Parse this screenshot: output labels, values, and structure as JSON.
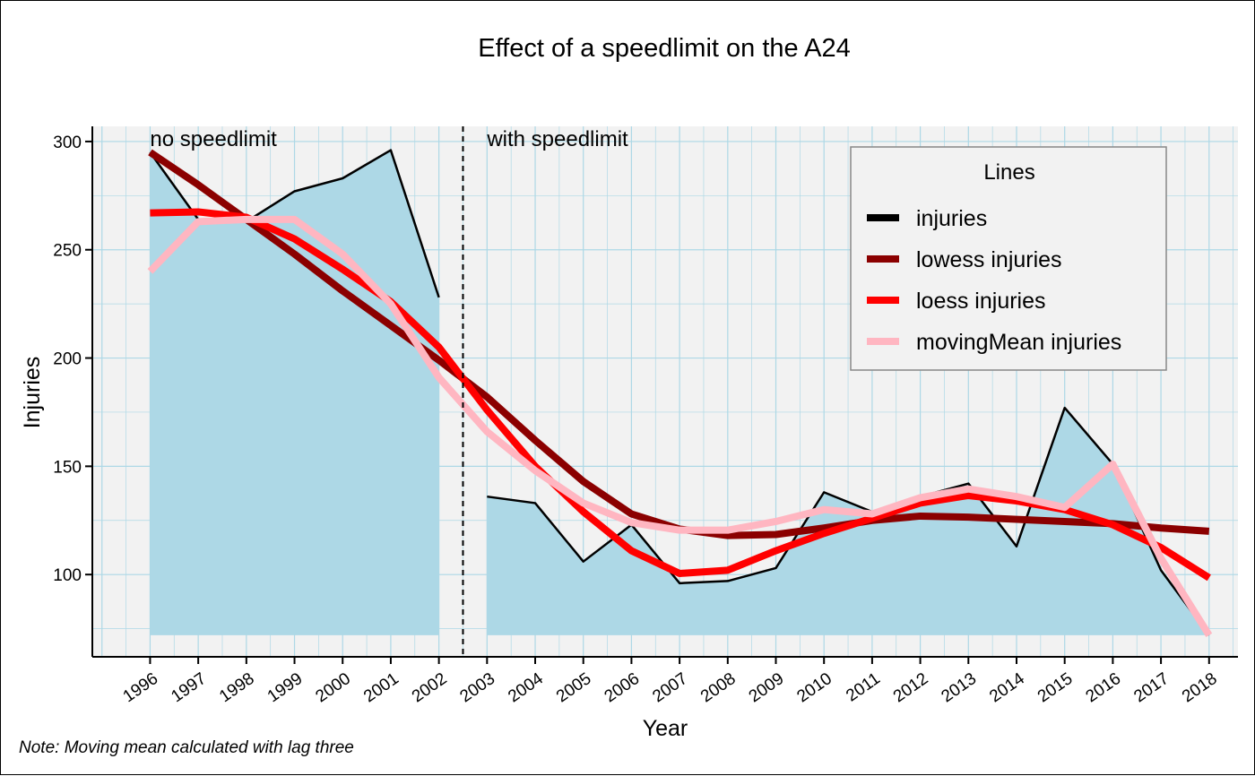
{
  "chart_data": {
    "type": "line",
    "title": "Effect of a speedlimit on the A24",
    "xlabel": "Year",
    "ylabel": "Injuries",
    "caption": "Note: Moving mean calculated with lag three",
    "annotations": [
      "no speedlimit",
      "with speedlimit"
    ],
    "break_year": 2002.5,
    "x": [
      1996,
      1997,
      1998,
      1999,
      2000,
      2001,
      2002,
      2003,
      2004,
      2005,
      2006,
      2007,
      2008,
      2009,
      2010,
      2011,
      2012,
      2013,
      2014,
      2015,
      2016,
      2017,
      2018
    ],
    "xticks": [
      "1996",
      "1997",
      "1998",
      "1999",
      "2000",
      "2001",
      "2002",
      "2003",
      "2004",
      "2005",
      "2006",
      "2007",
      "2008",
      "2009",
      "2010",
      "2011",
      "2012",
      "2013",
      "2014",
      "2015",
      "2016",
      "2017",
      "2018"
    ],
    "yticks": [
      100,
      150,
      200,
      250,
      300
    ],
    "ylim": [
      62,
      307
    ],
    "xlim": [
      1994.8,
      2018.6
    ],
    "area_baseline": 72,
    "grid": true,
    "background": "#f2f2f2",
    "grid_color": "#add8e6",
    "area_color": "#add8e6",
    "legend": {
      "title": "Lines",
      "position": "top-right",
      "entries": [
        {
          "label": "injuries",
          "color": "#000000"
        },
        {
          "label": "lowess injuries",
          "color": "#8b0000"
        },
        {
          "label": "loess injuries",
          "color": "#ff0000"
        },
        {
          "label": "movingMean injuries",
          "color": "#ffb6c1"
        }
      ]
    },
    "series": [
      {
        "name": "injuries",
        "color": "#000000",
        "values": [
          295,
          264,
          263,
          277,
          283,
          296,
          228,
          136,
          133,
          106,
          123,
          96,
          97,
          103,
          138,
          129,
          136,
          142,
          113,
          177,
          151,
          102,
          72
        ]
      },
      {
        "name": "lowess injuries",
        "color": "#8b0000",
        "values": [
          295,
          280,
          264,
          248,
          231,
          215,
          199,
          182,
          162,
          143,
          128,
          121,
          118,
          118.5,
          121.5,
          125,
          127,
          126.5,
          125.5,
          124.5,
          123.5,
          121.5,
          120
        ]
      },
      {
        "name": "loess injuries",
        "color": "#ff0000",
        "values": [
          267,
          267.5,
          265,
          255,
          241,
          226,
          205,
          176,
          150,
          129,
          111,
          100.5,
          102,
          111,
          119,
          126,
          133,
          136.5,
          134,
          130,
          123,
          112.5,
          98.5
        ]
      },
      {
        "name": "movingMean injuries",
        "color": "#ffb6c1",
        "values": [
          240,
          263,
          264,
          264,
          248,
          225,
          191,
          166,
          148,
          133,
          124,
          120.5,
          120.5,
          124.5,
          130,
          128,
          135.5,
          139.5,
          136,
          131,
          151,
          107.5,
          72
        ]
      }
    ]
  }
}
